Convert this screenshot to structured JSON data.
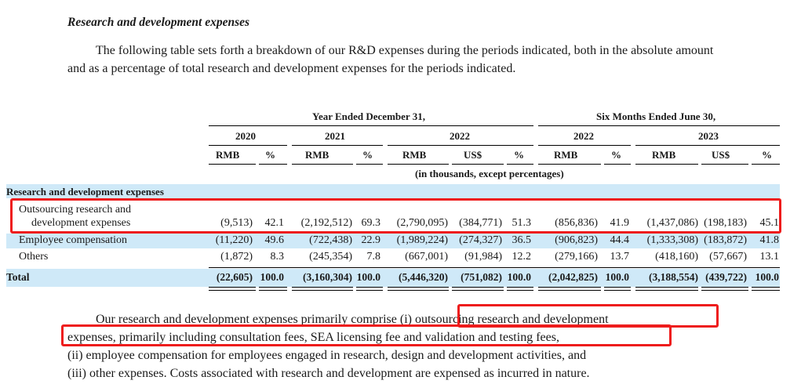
{
  "section": {
    "heading": "Research and development expenses",
    "intro": "The following table sets forth a breakdown of our R&D expenses during the periods indicated, both in the absolute amount and as a percentage of total research and development expenses for the periods indicated."
  },
  "table": {
    "group_headers": [
      "Year Ended December 31,",
      "Six Months Ended June 30,"
    ],
    "years": [
      "2020",
      "2021",
      "2022",
      "2022",
      "2023"
    ],
    "columns": [
      "RMB",
      "%",
      "RMB",
      "%",
      "RMB",
      "US$",
      "%",
      "RMB",
      "%",
      "RMB",
      "US$",
      "%"
    ],
    "units_note": "(in thousands, except percentages)",
    "section_label": "Research and development expenses",
    "rows": [
      {
        "label_line1": "Outsourcing research and",
        "label_line2": "development expenses",
        "values": [
          "(9,513)",
          "42.1",
          "(2,192,512)",
          "69.3",
          "(2,790,095)",
          "(384,771)",
          "51.3",
          "(856,836)",
          "41.9",
          "(1,437,086)",
          "(198,183)",
          "45.1"
        ]
      },
      {
        "label_line1": "Employee compensation",
        "label_line2": "",
        "values": [
          "(11,220)",
          "49.6",
          "(722,438)",
          "22.9",
          "(1,989,224)",
          "(274,327)",
          "36.5",
          "(906,823)",
          "44.4",
          "(1,333,308)",
          "(183,872)",
          "41.8"
        ]
      },
      {
        "label_line1": "Others",
        "label_line2": "",
        "values": [
          "(1,872)",
          "8.3",
          "(245,354)",
          "7.8",
          "(667,001)",
          "(91,984)",
          "12.2",
          "(279,166)",
          "13.7",
          "(418,160)",
          "(57,667)",
          "13.1"
        ]
      }
    ],
    "total": {
      "label": "Total",
      "values": [
        "(22,605)",
        "100.0",
        "(3,160,304)",
        "100.0",
        "(5,446,320)",
        "(751,082)",
        "100.0",
        "(2,042,825)",
        "100.0",
        "(3,188,554)",
        "(439,722)",
        "100.0"
      ]
    }
  },
  "paragraph2": {
    "line1_a": "Our research and development expenses primarily comprise ",
    "line1_b": "(i) outsourcing research and development",
    "line2": "expenses, primarily including consultation fees, SEA licensing fee and validation and testing fees,",
    "line3": "(ii) employee compensation for employees engaged in research, design and development activities, and",
    "line4": "(iii) other expenses. Costs associated with research and development are expensed as incurred in nature."
  },
  "colors": {
    "highlight_band": "#cfe9f8",
    "annotation_red": "#ee1c1c"
  }
}
